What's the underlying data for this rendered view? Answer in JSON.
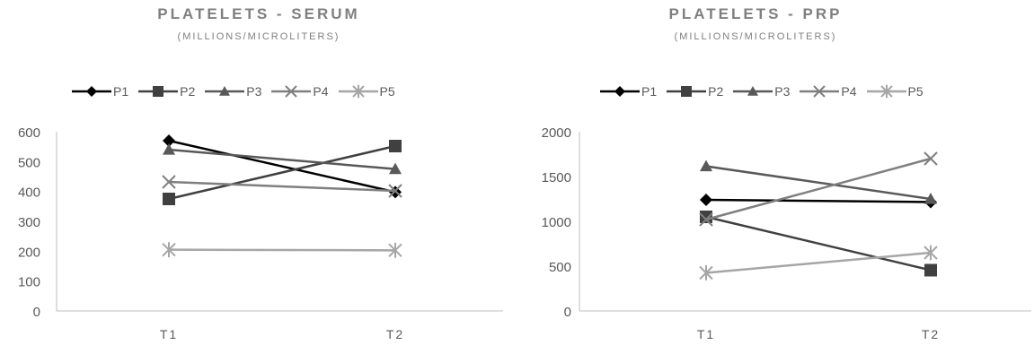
{
  "chart_data": [
    {
      "type": "line",
      "title": "PLATELETS - SERUM",
      "subtitle": "(MILLIONS/MICROLITERS)",
      "categories": [
        "T1",
        "T2"
      ],
      "ylim": [
        0,
        600
      ],
      "yticks": [
        0,
        100,
        200,
        300,
        400,
        500,
        600
      ],
      "legend": "top",
      "grid": false,
      "series": [
        {
          "name": "P1",
          "values": [
            570,
            398
          ],
          "color": "#000000",
          "marker": "diamond"
        },
        {
          "name": "P2",
          "values": [
            375,
            552
          ],
          "color": "#404040",
          "marker": "square"
        },
        {
          "name": "P3",
          "values": [
            540,
            475
          ],
          "color": "#595959",
          "marker": "triangle"
        },
        {
          "name": "P4",
          "values": [
            432,
            402
          ],
          "color": "#7f7f7f",
          "marker": "x"
        },
        {
          "name": "P5",
          "values": [
            205,
            203
          ],
          "color": "#a6a6a6",
          "marker": "star"
        }
      ]
    },
    {
      "type": "line",
      "title": "PLATELETS - PRP",
      "subtitle": "(MILLIONS/MICROLITERS)",
      "categories": [
        "T1",
        "T2"
      ],
      "ylim": [
        0,
        2000
      ],
      "yticks": [
        0,
        500,
        1000,
        1500,
        2000
      ],
      "legend": "top",
      "grid": false,
      "series": [
        {
          "name": "P1",
          "values": [
            1240,
            1215
          ],
          "color": "#000000",
          "marker": "diamond"
        },
        {
          "name": "P2",
          "values": [
            1050,
            455
          ],
          "color": "#404040",
          "marker": "square"
        },
        {
          "name": "P3",
          "values": [
            1615,
            1250
          ],
          "color": "#595959",
          "marker": "triangle"
        },
        {
          "name": "P4",
          "values": [
            1020,
            1700
          ],
          "color": "#7f7f7f",
          "marker": "x"
        },
        {
          "name": "P5",
          "values": [
            425,
            650
          ],
          "color": "#a6a6a6",
          "marker": "star"
        }
      ]
    }
  ]
}
